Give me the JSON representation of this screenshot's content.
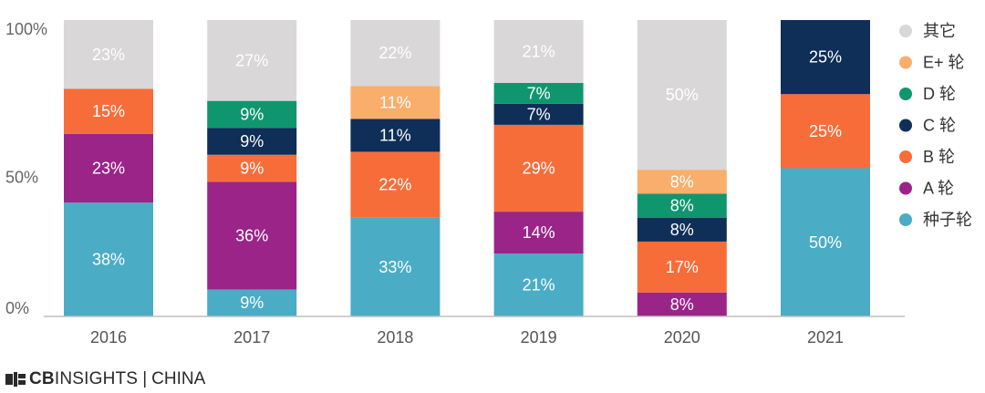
{
  "chart_data": {
    "type": "bar",
    "stacked": true,
    "categories": [
      "2016",
      "2017",
      "2018",
      "2019",
      "2020",
      "2021"
    ],
    "yticks": [
      "100%",
      "50%",
      "0%"
    ],
    "ylim": [
      0,
      100
    ],
    "series": [
      {
        "name": "种子轮",
        "color": "#4BACC6",
        "values": [
          38,
          9,
          33,
          21,
          0,
          50
        ]
      },
      {
        "name": "A 轮",
        "color": "#9B2488",
        "values": [
          23,
          36,
          0,
          14,
          8,
          0
        ]
      },
      {
        "name": "B 轮",
        "color": "#F76D3A",
        "values": [
          15,
          9,
          22,
          29,
          17,
          25
        ]
      },
      {
        "name": "C 轮",
        "color": "#0F2E58",
        "values": [
          0,
          9,
          11,
          7,
          8,
          25
        ]
      },
      {
        "name": "D 轮",
        "color": "#10966E",
        "values": [
          0,
          9,
          0,
          7,
          8,
          0
        ]
      },
      {
        "name": "E+ 轮",
        "color": "#F9AE6B",
        "values": [
          0,
          0,
          11,
          0,
          8,
          0
        ]
      },
      {
        "name": "其它",
        "color": "#D9D7D8",
        "values": [
          23,
          27,
          22,
          21,
          50,
          0
        ]
      }
    ],
    "segment_labels": [
      [
        "38%",
        "9%",
        "33%",
        "21%",
        "",
        "50%"
      ],
      [
        "23%",
        "36%",
        "",
        "14%",
        "8%",
        ""
      ],
      [
        "15%",
        "9%",
        "22%",
        "29%",
        "17%",
        "25%"
      ],
      [
        "",
        "9%",
        "11%",
        "7%",
        "8%",
        "25%"
      ],
      [
        "",
        "9%",
        "",
        "7%",
        "8%",
        ""
      ],
      [
        "",
        "",
        "11%",
        "",
        "8%",
        ""
      ],
      [
        "23%",
        "27%",
        "22%",
        "21%",
        "50%",
        ""
      ]
    ],
    "legend": [
      "其它",
      "E+ 轮",
      "D 轮",
      "C 轮",
      "B 轮",
      "A 轮",
      "种子轮"
    ],
    "legend_position": "right"
  },
  "footer": {
    "brand_bold": "CB",
    "brand_rest": "INSIGHTS",
    "separator": "|",
    "region": "CHINA"
  }
}
